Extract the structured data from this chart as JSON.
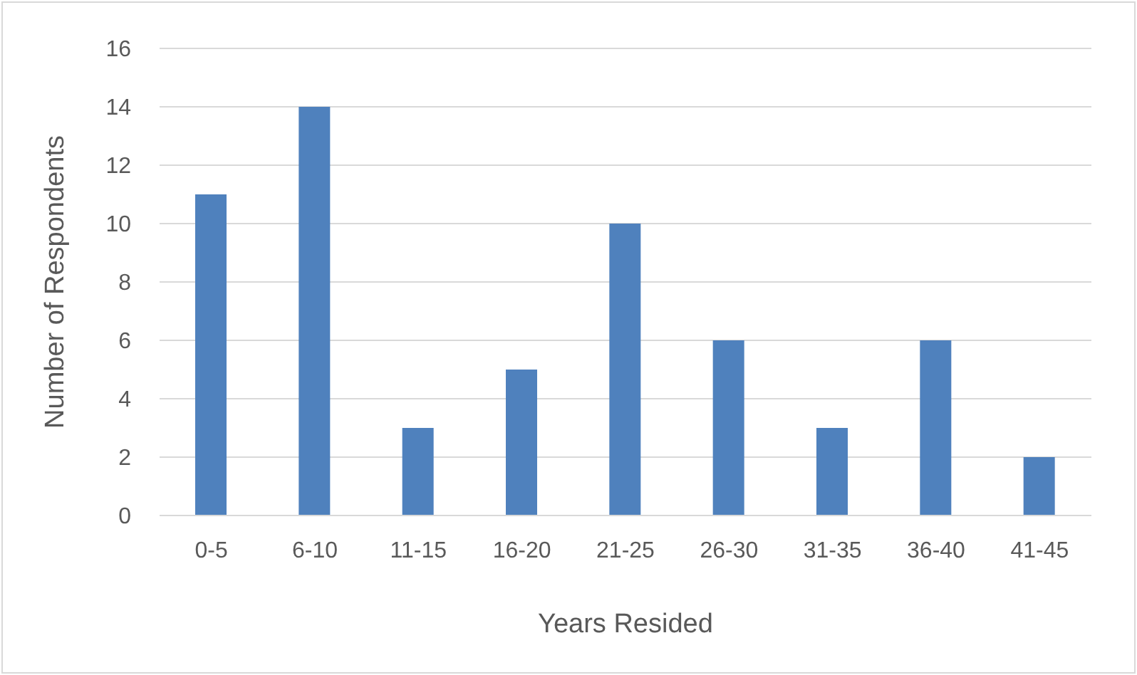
{
  "chart_data": {
    "type": "bar",
    "xlabel": "Years Resided",
    "ylabel": "Number of Respondents",
    "categories": [
      "0-5",
      "6-10",
      "11-15",
      "16-20",
      "21-25",
      "26-30",
      "31-35",
      "36-40",
      "41-45"
    ],
    "values": [
      11,
      14,
      3,
      5,
      10,
      6,
      3,
      6,
      2
    ],
    "color": "#4f81bd",
    "ylim": [
      0,
      16
    ],
    "yticks": [
      0,
      2,
      4,
      6,
      8,
      10,
      12,
      14,
      16
    ],
    "grid": "y"
  }
}
